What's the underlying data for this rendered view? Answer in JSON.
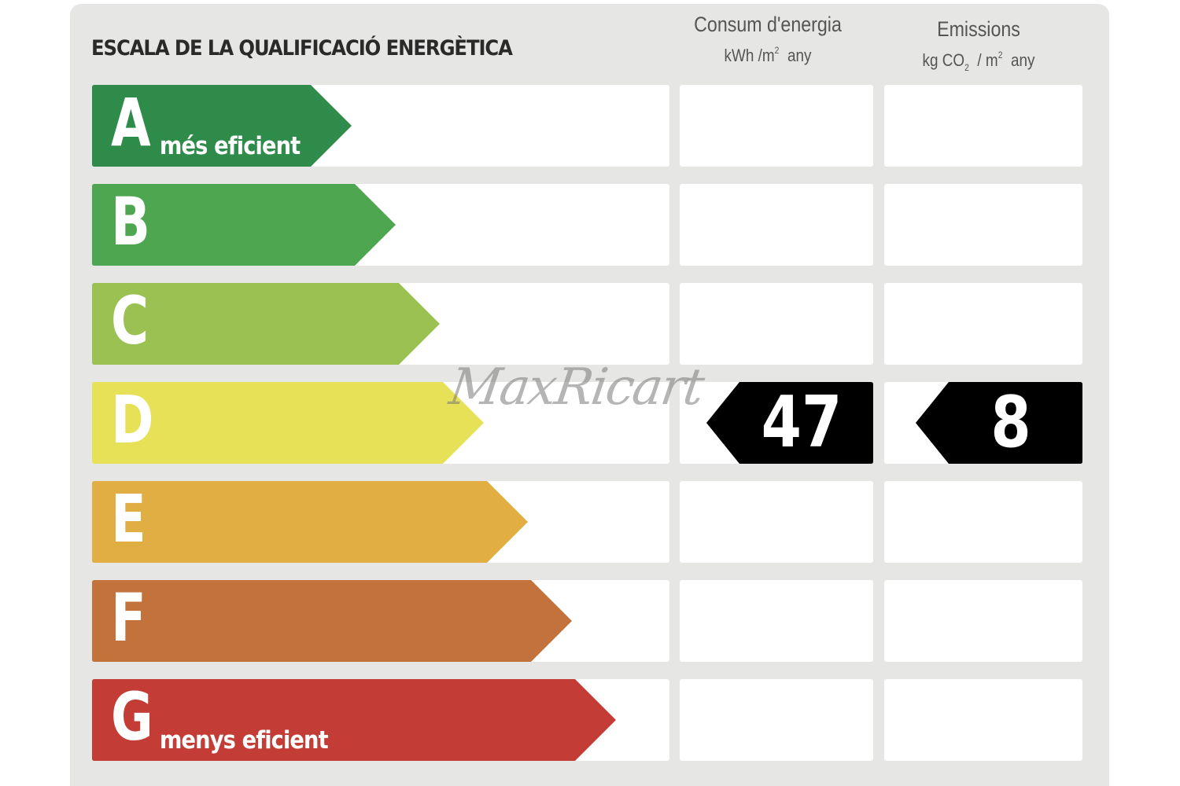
{
  "title": "ESCALA DE LA QUALIFICACIÓ ENERGÈTICA",
  "columns": {
    "energy": {
      "title": "Consum d'energia",
      "unit_prefix": "kWh /m",
      "unit_sup": "2",
      "unit_suffix": "any"
    },
    "emissions": {
      "title": "Emissions",
      "unit_prefix": "kg CO",
      "unit_sub": "2",
      "unit_mid": "/ m",
      "unit_sup": "2",
      "unit_suffix": "any"
    }
  },
  "ratings": [
    {
      "letter": "A",
      "label": "més eficient",
      "color": "#2e8b4a"
    },
    {
      "letter": "B",
      "label": "",
      "color": "#4ea650"
    },
    {
      "letter": "C",
      "label": "",
      "color": "#9bc152"
    },
    {
      "letter": "D",
      "label": "",
      "color": "#e6e157"
    },
    {
      "letter": "E",
      "label": "",
      "color": "#e1ae44"
    },
    {
      "letter": "F",
      "label": "",
      "color": "#c4723b"
    },
    {
      "letter": "G",
      "label": "menys eficient",
      "color": "#c33d36"
    }
  ],
  "result": {
    "rating": "D",
    "energy_value": "47",
    "emissions_value": "8"
  },
  "watermark": "MaxRicart"
}
